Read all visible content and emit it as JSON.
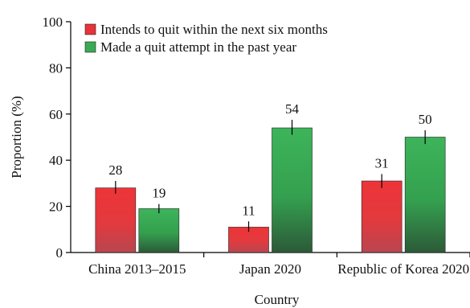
{
  "chart_data": {
    "type": "bar",
    "title": "",
    "xlabel": "Country",
    "ylabel": "Proportion (%)",
    "ylim": [
      0,
      100
    ],
    "yticks": [
      0,
      20,
      40,
      60,
      80,
      100
    ],
    "grid": false,
    "legend_position": "top-left",
    "categories": [
      "China 2013–2015",
      "Japan 2020",
      "Republic of Korea 2020"
    ],
    "series": [
      {
        "name": "Intends to quit within the next six months",
        "color": "#e8333a",
        "values": [
          28,
          11,
          31
        ],
        "error_low": [
          25.5,
          9,
          28
        ],
        "error_high": [
          31,
          13.5,
          34
        ]
      },
      {
        "name": "Made a quit attempt in the past year",
        "color": "#3aaa55",
        "values": [
          19,
          54,
          50
        ],
        "error_low": [
          17,
          51,
          47
        ],
        "error_high": [
          21,
          57.5,
          53
        ]
      }
    ],
    "data_labels": [
      [
        "28",
        "11",
        "31"
      ],
      [
        "19",
        "54",
        "50"
      ]
    ]
  }
}
